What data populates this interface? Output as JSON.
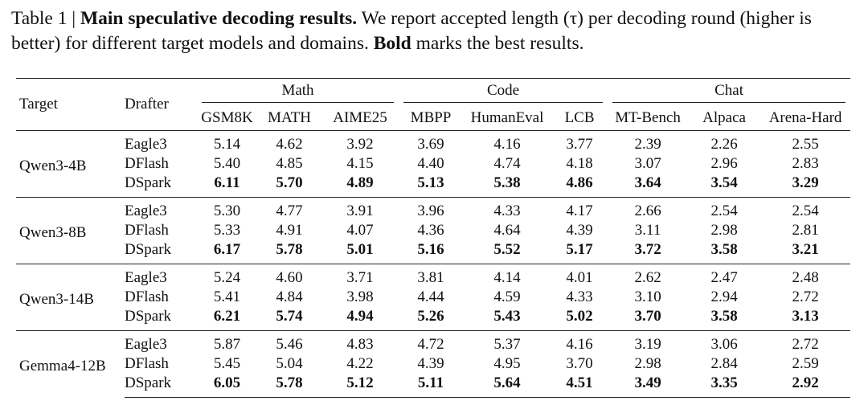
{
  "caption": {
    "label": "Table 1 |",
    "title": "Main speculative decoding results.",
    "text": "We report accepted length (τ) per decoding round (higher is better) for different target models and domains.",
    "bold_word": "Bold",
    "text_end": "marks the best results."
  },
  "table": {
    "header": {
      "target": "Target",
      "drafter": "Drafter",
      "groups": [
        {
          "name": "Math",
          "columns": [
            "GSM8K",
            "MATH",
            "AIME25"
          ]
        },
        {
          "name": "Code",
          "columns": [
            "MBPP",
            "HumanEval",
            "LCB"
          ]
        },
        {
          "name": "Chat",
          "columns": [
            "MT-Bench",
            "Alpaca",
            "Arena-Hard"
          ]
        }
      ]
    },
    "groups": [
      {
        "target": "Qwen3-4B",
        "rows": [
          {
            "drafter": "Eagle3",
            "values": [
              "5.14",
              "4.62",
              "3.92",
              "3.69",
              "4.16",
              "3.77",
              "2.39",
              "2.26",
              "2.55"
            ]
          },
          {
            "drafter": "DFlash",
            "values": [
              "5.40",
              "4.85",
              "4.15",
              "4.40",
              "4.74",
              "4.18",
              "3.07",
              "2.96",
              "2.83"
            ]
          },
          {
            "drafter": "DSpark",
            "values": [
              "6.11",
              "5.70",
              "4.89",
              "5.13",
              "5.38",
              "4.86",
              "3.64",
              "3.54",
              "3.29"
            ]
          }
        ]
      },
      {
        "target": "Qwen3-8B",
        "rows": [
          {
            "drafter": "Eagle3",
            "values": [
              "5.30",
              "4.77",
              "3.91",
              "3.96",
              "4.33",
              "4.17",
              "2.66",
              "2.54",
              "2.54"
            ]
          },
          {
            "drafter": "DFlash",
            "values": [
              "5.33",
              "4.91",
              "4.07",
              "4.36",
              "4.64",
              "4.39",
              "3.11",
              "2.98",
              "2.81"
            ]
          },
          {
            "drafter": "DSpark",
            "values": [
              "6.17",
              "5.78",
              "5.01",
              "5.16",
              "5.52",
              "5.17",
              "3.72",
              "3.58",
              "3.21"
            ]
          }
        ]
      },
      {
        "target": "Qwen3-14B",
        "rows": [
          {
            "drafter": "Eagle3",
            "values": [
              "5.24",
              "4.60",
              "3.71",
              "3.81",
              "4.14",
              "4.01",
              "2.62",
              "2.47",
              "2.48"
            ]
          },
          {
            "drafter": "DFlash",
            "values": [
              "5.41",
              "4.84",
              "3.98",
              "4.44",
              "4.59",
              "4.33",
              "3.10",
              "2.94",
              "2.72"
            ]
          },
          {
            "drafter": "DSpark",
            "values": [
              "6.21",
              "5.74",
              "4.94",
              "5.26",
              "5.43",
              "5.02",
              "3.70",
              "3.58",
              "3.13"
            ]
          }
        ]
      },
      {
        "target": "Gemma4-12B",
        "rows": [
          {
            "drafter": "Eagle3",
            "values": [
              "5.87",
              "5.46",
              "4.83",
              "4.72",
              "5.37",
              "4.16",
              "3.19",
              "3.06",
              "2.72"
            ]
          },
          {
            "drafter": "DFlash",
            "values": [
              "5.45",
              "5.04",
              "4.22",
              "4.39",
              "4.95",
              "3.70",
              "2.98",
              "2.84",
              "2.59"
            ]
          },
          {
            "drafter": "DSpark",
            "values": [
              "6.05",
              "5.78",
              "5.12",
              "5.11",
              "5.64",
              "4.51",
              "3.49",
              "3.35",
              "2.92"
            ]
          }
        ]
      }
    ]
  }
}
